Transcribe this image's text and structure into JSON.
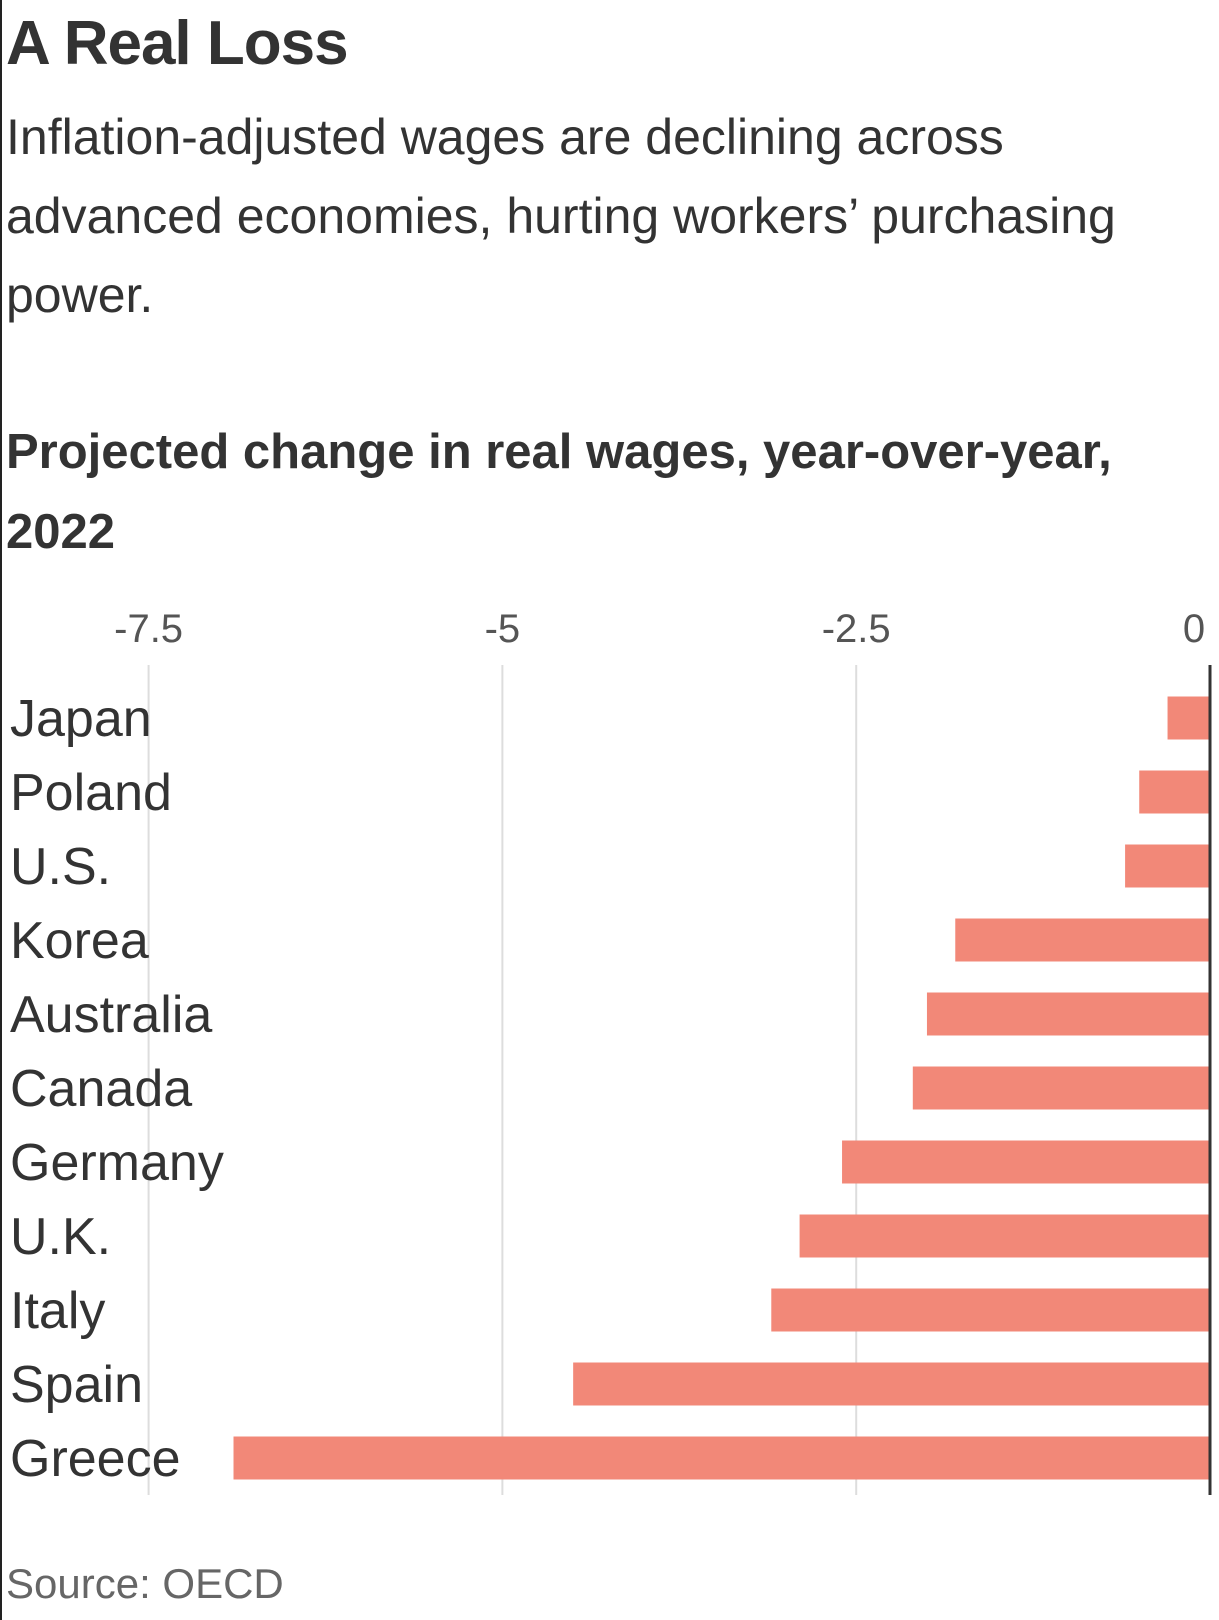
{
  "title": "A Real Loss",
  "subtitle": "Inflation-adjusted wages are declining across advanced economies, hurting workers’ purchasing power.",
  "source": "Source: OECD",
  "chart_data": {
    "type": "bar",
    "orientation": "horizontal",
    "title": "Projected change in real wages, year-over-year, 2022",
    "xlabel": "",
    "ylabel": "",
    "categories": [
      "Japan",
      "Poland",
      "U.S.",
      "Korea",
      "Australia",
      "Canada",
      "Germany",
      "U.K.",
      "Italy",
      "Spain",
      "Greece"
    ],
    "values": [
      -0.3,
      -0.5,
      -0.6,
      -1.8,
      -2.0,
      -2.1,
      -2.6,
      -2.9,
      -3.1,
      -4.5,
      -6.9
    ],
    "xlim": [
      -8.55,
      0
    ],
    "ticks": [
      -7.5,
      -5,
      -2.5,
      0
    ],
    "tick_labels": [
      "-7.5",
      "-5",
      "-2.5",
      "0"
    ],
    "grid": true,
    "bar_color": "#f28878",
    "gridline_color": "#dddddd",
    "zero_line_color": "#333333"
  }
}
